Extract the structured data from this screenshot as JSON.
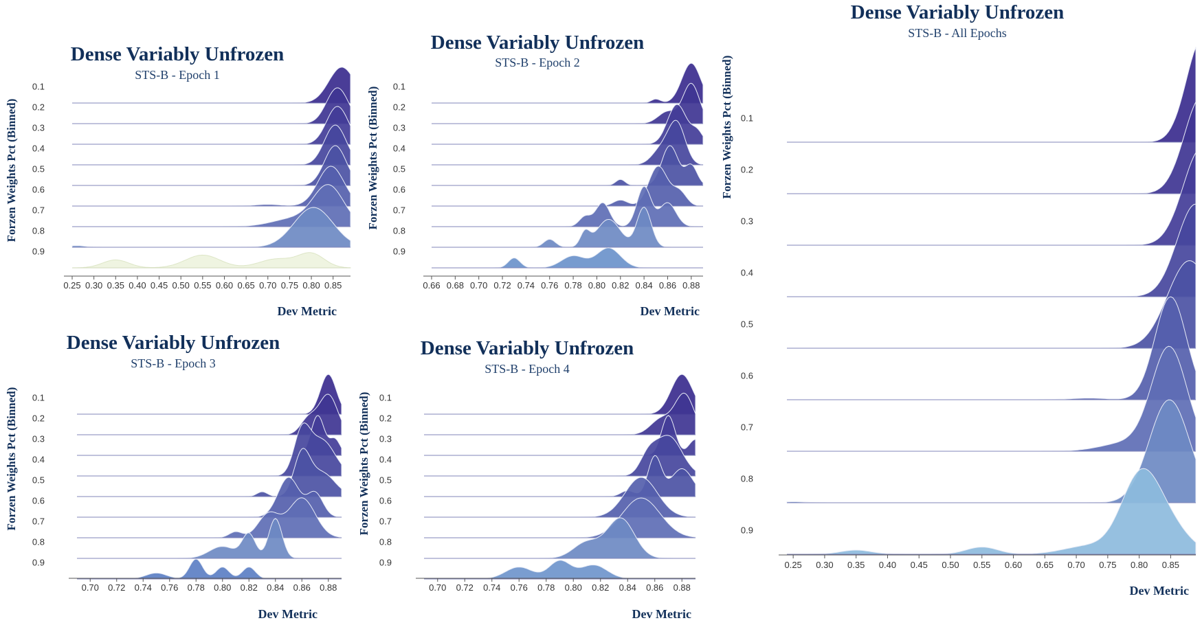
{
  "chart_data": [
    {
      "type": "ridgeline",
      "title": "Dense Variably Unfrozen",
      "subtitle": "STS-B - Epoch 1",
      "xlabel": "Dev Metric",
      "ylabel": "Forzen Weights Pct (Binned)",
      "xlim": [
        0.25,
        0.89
      ],
      "xticks": [
        "0.25",
        "0.30",
        "0.35",
        "0.40",
        "0.45",
        "0.50",
        "0.55",
        "0.60",
        "0.65",
        "0.70",
        "0.75",
        "0.80",
        "0.85"
      ],
      "categories": [
        "0.1",
        "0.2",
        "0.3",
        "0.4",
        "0.5",
        "0.6",
        "0.7",
        "0.8",
        "0.9"
      ],
      "series": [
        {
          "category": "0.1",
          "peaks": [
            [
              0.87,
              0.9,
              0.03
            ]
          ]
        },
        {
          "category": "0.2",
          "peaks": [
            [
              0.86,
              0.9,
              0.025
            ]
          ]
        },
        {
          "category": "0.3",
          "peaks": [
            [
              0.86,
              0.95,
              0.025
            ]
          ]
        },
        {
          "category": "0.4",
          "peaks": [
            [
              0.855,
              1.0,
              0.025
            ]
          ]
        },
        {
          "category": "0.5",
          "peaks": [
            [
              0.855,
              1.0,
              0.025
            ]
          ]
        },
        {
          "category": "0.6",
          "peaks": [
            [
              0.845,
              1.0,
              0.03
            ],
            [
              0.7,
              0.04,
              0.03
            ]
          ]
        },
        {
          "category": "0.7",
          "peaks": [
            [
              0.84,
              1.0,
              0.035
            ],
            [
              0.76,
              0.2,
              0.05
            ]
          ]
        },
        {
          "category": "0.8",
          "peaks": [
            [
              0.805,
              1.0,
              0.045
            ],
            [
              0.26,
              0.04,
              0.02
            ]
          ]
        },
        {
          "category": "0.9",
          "peaks": [
            [
              0.35,
              0.2,
              0.03
            ],
            [
              0.55,
              0.32,
              0.04
            ],
            [
              0.72,
              0.22,
              0.04
            ],
            [
              0.8,
              0.35,
              0.03
            ]
          ]
        }
      ]
    },
    {
      "type": "ridgeline",
      "title": "Dense Variably Unfrozen",
      "subtitle": "STS-B - Epoch 2",
      "xlabel": "Dev Metric",
      "ylabel": "Forzen Weights Pct (Binned)",
      "xlim": [
        0.66,
        0.89
      ],
      "xticks": [
        "0.66",
        "0.68",
        "0.70",
        "0.72",
        "0.74",
        "0.76",
        "0.78",
        "0.80",
        "0.82",
        "0.84",
        "0.86",
        "0.88"
      ],
      "categories": [
        "0.1",
        "0.2",
        "0.3",
        "0.4",
        "0.5",
        "0.6",
        "0.7",
        "0.8",
        "0.9"
      ],
      "series": [
        {
          "category": "0.1",
          "peaks": [
            [
              0.88,
              1.0,
              0.008
            ],
            [
              0.85,
              0.1,
              0.004
            ]
          ]
        },
        {
          "category": "0.2",
          "peaks": [
            [
              0.88,
              1.0,
              0.007
            ],
            [
              0.86,
              0.3,
              0.008
            ]
          ]
        },
        {
          "category": "0.3",
          "peaks": [
            [
              0.868,
              1.0,
              0.008
            ],
            [
              0.885,
              0.3,
              0.005
            ]
          ]
        },
        {
          "category": "0.4",
          "peaks": [
            [
              0.868,
              1.0,
              0.007
            ],
            [
              0.855,
              0.4,
              0.008
            ]
          ]
        },
        {
          "category": "0.5",
          "peaks": [
            [
              0.862,
              1.0,
              0.007
            ],
            [
              0.88,
              0.5,
              0.005
            ],
            [
              0.82,
              0.15,
              0.004
            ]
          ]
        },
        {
          "category": "0.6",
          "peaks": [
            [
              0.852,
              1.0,
              0.008
            ],
            [
              0.87,
              0.35,
              0.006
            ],
            [
              0.82,
              0.15,
              0.006
            ]
          ]
        },
        {
          "category": "0.7",
          "peaks": [
            [
              0.84,
              1.0,
              0.006
            ],
            [
              0.86,
              0.6,
              0.007
            ],
            [
              0.805,
              0.6,
              0.006
            ],
            [
              0.79,
              0.25,
              0.005
            ]
          ]
        },
        {
          "category": "0.8",
          "peaks": [
            [
              0.84,
              1.0,
              0.006
            ],
            [
              0.81,
              0.7,
              0.01
            ],
            [
              0.79,
              0.35,
              0.004
            ],
            [
              0.76,
              0.2,
              0.005
            ]
          ]
        },
        {
          "category": "0.9",
          "peaks": [
            [
              0.81,
              0.5,
              0.01
            ],
            [
              0.73,
              0.25,
              0.005
            ],
            [
              0.78,
              0.3,
              0.01
            ]
          ]
        }
      ]
    },
    {
      "type": "ridgeline",
      "title": "Dense Variably Unfrozen",
      "subtitle": "STS-B - Epoch 3",
      "xlabel": "Dev Metric",
      "ylabel": "Forzen Weights Pct (Binned)",
      "xlim": [
        0.69,
        0.89
      ],
      "xticks": [
        "0.70",
        "0.72",
        "0.74",
        "0.76",
        "0.78",
        "0.80",
        "0.82",
        "0.84",
        "0.86",
        "0.88"
      ],
      "categories": [
        "0.1",
        "0.2",
        "0.3",
        "0.4",
        "0.5",
        "0.6",
        "0.7",
        "0.8",
        "0.9"
      ],
      "series": [
        {
          "category": "0.1",
          "peaks": [
            [
              0.88,
              1.0,
              0.006
            ]
          ]
        },
        {
          "category": "0.2",
          "peaks": [
            [
              0.88,
              1.0,
              0.007
            ],
            [
              0.865,
              0.4,
              0.006
            ]
          ]
        },
        {
          "category": "0.3",
          "peaks": [
            [
              0.872,
              1.0,
              0.005
            ],
            [
              0.885,
              0.4,
              0.004
            ]
          ]
        },
        {
          "category": "0.4",
          "peaks": [
            [
              0.86,
              1.0,
              0.006
            ],
            [
              0.875,
              0.9,
              0.01
            ]
          ]
        },
        {
          "category": "0.5",
          "peaks": [
            [
              0.86,
              1.0,
              0.006
            ],
            [
              0.875,
              0.6,
              0.01
            ],
            [
              0.83,
              0.12,
              0.004
            ]
          ]
        },
        {
          "category": "0.6",
          "peaks": [
            [
              0.85,
              1.0,
              0.008
            ],
            [
              0.87,
              0.6,
              0.006
            ]
          ]
        },
        {
          "category": "0.7",
          "peaks": [
            [
              0.86,
              1.0,
              0.01
            ],
            [
              0.835,
              0.6,
              0.008
            ],
            [
              0.81,
              0.15,
              0.005
            ]
          ]
        },
        {
          "category": "0.8",
          "peaks": [
            [
              0.84,
              1.0,
              0.005
            ],
            [
              0.82,
              0.6,
              0.005
            ],
            [
              0.8,
              0.3,
              0.01
            ]
          ]
        },
        {
          "category": "0.9",
          "peaks": [
            [
              0.78,
              0.5,
              0.005
            ],
            [
              0.8,
              0.3,
              0.005
            ],
            [
              0.82,
              0.3,
              0.005
            ],
            [
              0.75,
              0.15,
              0.008
            ]
          ]
        }
      ]
    },
    {
      "type": "ridgeline",
      "title": "Dense Variably Unfrozen",
      "subtitle": "STS-B - Epoch 4",
      "xlabel": "Dev Metric",
      "ylabel": "Forzen Weights Pct (Binned)",
      "xlim": [
        0.69,
        0.89
      ],
      "xticks": [
        "0.70",
        "0.72",
        "0.74",
        "0.76",
        "0.78",
        "0.80",
        "0.82",
        "0.84",
        "0.86",
        "0.88"
      ],
      "categories": [
        "0.1",
        "0.2",
        "0.3",
        "0.4",
        "0.5",
        "0.6",
        "0.7",
        "0.8",
        "0.9"
      ],
      "series": [
        {
          "category": "0.1",
          "peaks": [
            [
              0.88,
              1.0,
              0.008
            ]
          ]
        },
        {
          "category": "0.2",
          "peaks": [
            [
              0.882,
              1.0,
              0.007
            ],
            [
              0.865,
              0.4,
              0.008
            ]
          ]
        },
        {
          "category": "0.3",
          "peaks": [
            [
              0.87,
              1.0,
              0.005
            ],
            [
              0.89,
              0.4,
              0.005
            ]
          ]
        },
        {
          "category": "0.4",
          "peaks": [
            [
              0.87,
              1.0,
              0.01
            ],
            [
              0.855,
              0.4,
              0.006
            ]
          ]
        },
        {
          "category": "0.5",
          "peaks": [
            [
              0.86,
              1.0,
              0.005
            ],
            [
              0.88,
              0.7,
              0.008
            ],
            [
              0.84,
              0.15,
              0.005
            ]
          ]
        },
        {
          "category": "0.6",
          "peaks": [
            [
              0.85,
              1.0,
              0.012
            ]
          ]
        },
        {
          "category": "0.7",
          "peaks": [
            [
              0.85,
              1.0,
              0.014
            ]
          ]
        },
        {
          "category": "0.8",
          "peaks": [
            [
              0.835,
              1.0,
              0.01
            ],
            [
              0.81,
              0.4,
              0.01
            ]
          ]
        },
        {
          "category": "0.9",
          "peaks": [
            [
              0.76,
              0.3,
              0.01
            ],
            [
              0.79,
              0.45,
              0.008
            ],
            [
              0.815,
              0.35,
              0.01
            ]
          ]
        }
      ]
    },
    {
      "type": "ridgeline",
      "title": "Dense Variably Unfrozen",
      "subtitle": "STS-B - All Epochs",
      "xlabel": "Dev Metric",
      "ylabel": "Forzen Weights Pct (Binned)",
      "xlim": [
        0.24,
        0.89
      ],
      "xticks": [
        "0.25",
        "0.30",
        "0.35",
        "0.40",
        "0.45",
        "0.50",
        "0.55",
        "0.60",
        "0.65",
        "0.70",
        "0.75",
        "0.80",
        "0.85"
      ],
      "categories": [
        "0.1",
        "0.2",
        "0.3",
        "0.4",
        "0.5",
        "0.6",
        "0.7",
        "0.8",
        "0.9"
      ],
      "series": [
        {
          "category": "0.1",
          "peaks": [
            [
              0.9,
              1.0,
              0.025
            ]
          ]
        },
        {
          "category": "0.2",
          "peaks": [
            [
              0.9,
              0.95,
              0.028
            ]
          ]
        },
        {
          "category": "0.3",
          "peaks": [
            [
              0.9,
              0.95,
              0.03
            ]
          ]
        },
        {
          "category": "0.4",
          "peaks": [
            [
              0.89,
              0.9,
              0.03
            ]
          ]
        },
        {
          "category": "0.5",
          "peaks": [
            [
              0.88,
              0.85,
              0.035
            ]
          ]
        },
        {
          "category": "0.6",
          "peaks": [
            [
              0.85,
              1.0,
              0.025
            ],
            [
              0.72,
              0.015,
              0.03
            ]
          ]
        },
        {
          "category": "0.7",
          "peaks": [
            [
              0.848,
              1.0,
              0.028
            ],
            [
              0.78,
              0.08,
              0.04
            ]
          ]
        },
        {
          "category": "0.8",
          "peaks": [
            [
              0.848,
              1.0,
              0.032
            ],
            [
              0.25,
              0.01,
              0.02
            ]
          ]
        },
        {
          "category": "0.9",
          "peaks": [
            [
              0.8,
              0.65,
              0.03
            ],
            [
              0.84,
              0.3,
              0.035
            ],
            [
              0.72,
              0.08,
              0.04
            ],
            [
              0.55,
              0.07,
              0.025
            ],
            [
              0.35,
              0.04,
              0.025
            ]
          ]
        }
      ]
    }
  ]
}
